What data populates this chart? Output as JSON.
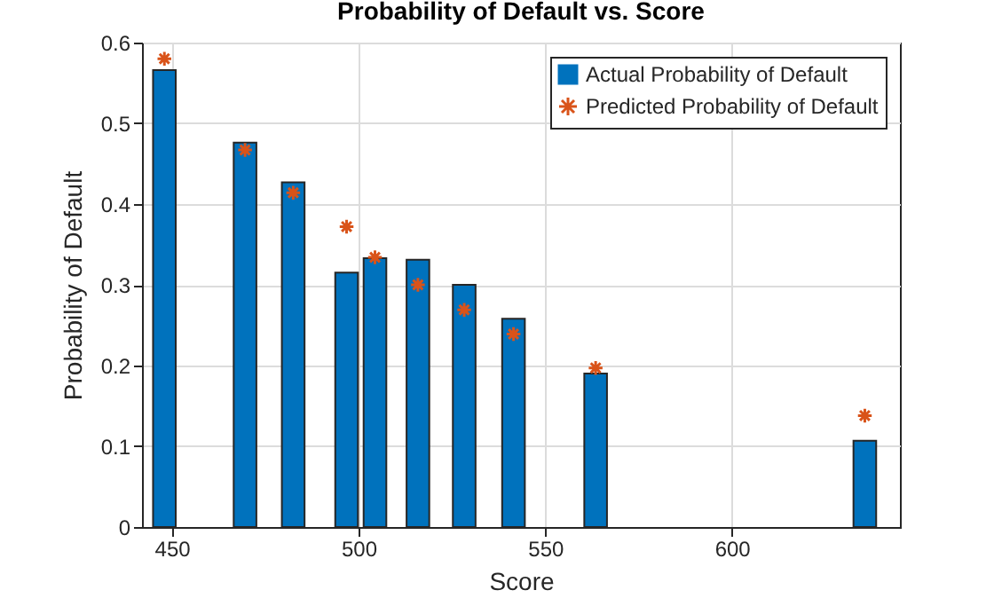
{
  "chart_data": {
    "type": "bar",
    "title": "Probability of Default vs. Score",
    "xlabel": "Score",
    "ylabel": "Probability of Default",
    "x": [
      448,
      469.6,
      482.5,
      496.8,
      504.4,
      515.9,
      528.3,
      541.5,
      563.5,
      635.6
    ],
    "series": [
      {
        "name": "Actual Probability of Default",
        "color": "#0072bd",
        "values": [
          0.566,
          0.476,
          0.427,
          0.315,
          0.333,
          0.331,
          0.3,
          0.258,
          0.19,
          0.107
        ]
      },
      {
        "name": "Predicted Probability of Default",
        "type": "scatter",
        "marker": "cross",
        "color": "#d95319",
        "values": [
          0.58,
          0.467,
          0.414,
          0.372,
          0.334,
          0.3,
          0.269,
          0.239,
          0.197,
          0.138
        ]
      }
    ],
    "xlim": [
      442,
      645
    ],
    "xticks": [
      450,
      500,
      550,
      600
    ],
    "ylim": [
      0,
      0.6
    ],
    "yticks": [
      0,
      0.1,
      0.2,
      0.3,
      0.4,
      0.5,
      0.6
    ],
    "grid": true,
    "legend": "top right"
  }
}
